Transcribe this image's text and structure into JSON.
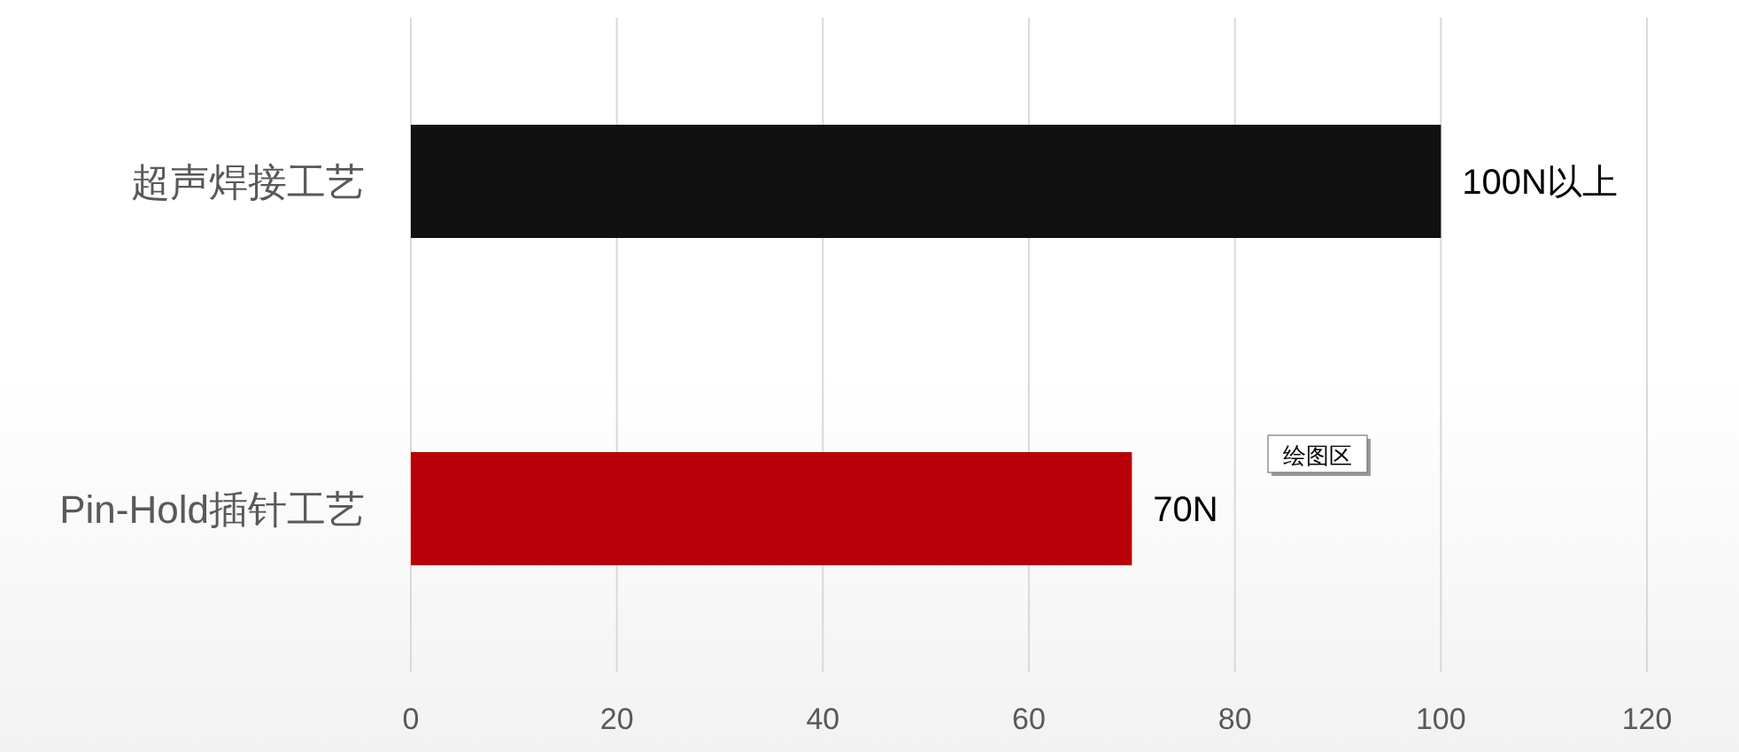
{
  "chart_data": {
    "type": "bar",
    "orientation": "horizontal",
    "categories": [
      "超声焊接工艺",
      "Pin-Hold插针工艺"
    ],
    "values": [
      100,
      70
    ],
    "colors": [
      "#111111",
      "#b80008"
    ],
    "value_labels": [
      "100N以上",
      "70N"
    ],
    "xlim": [
      0,
      120
    ],
    "xticks": [
      0,
      20,
      40,
      60,
      80,
      100,
      120
    ],
    "grid": "x",
    "annotations": [
      "绘图区"
    ]
  }
}
